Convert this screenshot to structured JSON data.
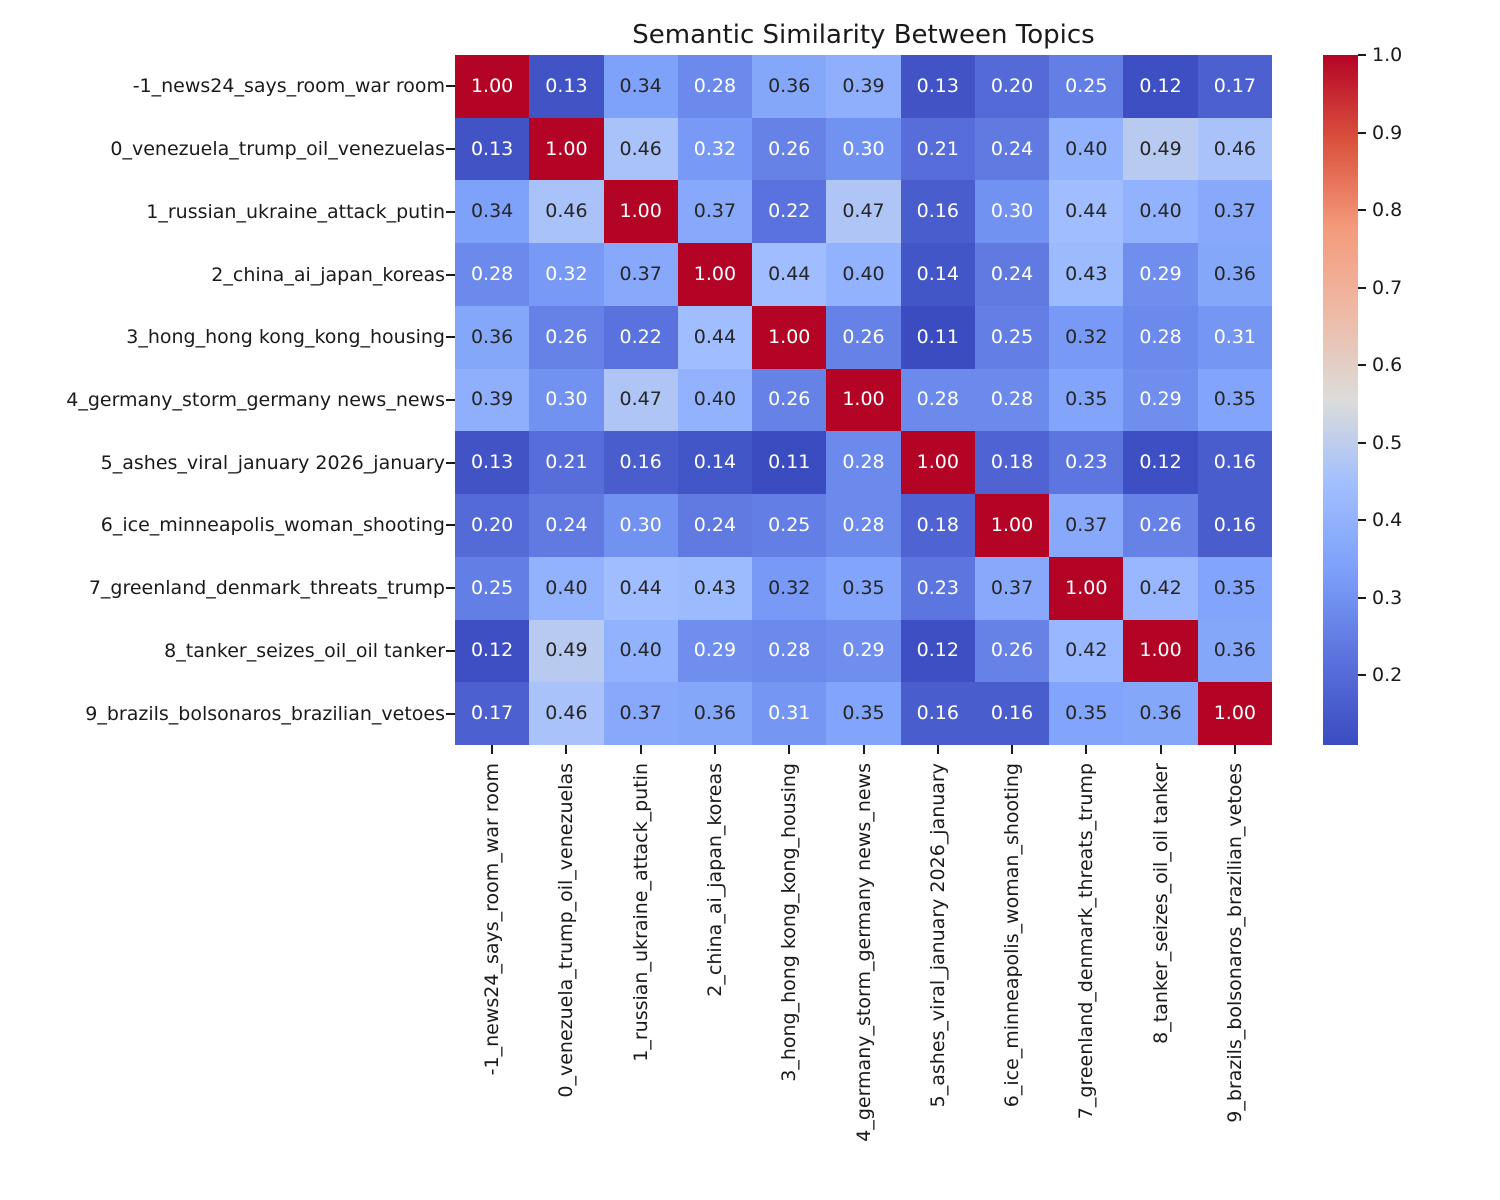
{
  "title": "Semantic Similarity Between Topics",
  "colors": {
    "background": "#ffffff",
    "annot_light": "#ffffff",
    "annot_dark": "#262626",
    "label": "#1a1a1a"
  },
  "chart_data": {
    "type": "heatmap",
    "title": "Semantic Similarity Between Topics",
    "xlabel": "",
    "ylabel": "",
    "grid": false,
    "legend_position": "colorbar-right",
    "categories": [
      "-1_news24_says_room_war room",
      "0_venezuela_trump_oil_venezuelas",
      "1_russian_ukraine_attack_putin",
      "2_china_ai_japan_koreas",
      "3_hong_hong kong_kong_housing",
      "4_germany_storm_germany news_news",
      "5_ashes_viral_january 2026_january",
      "6_ice_minneapolis_woman_shooting",
      "7_greenland_denmark_threats_trump",
      "8_tanker_seizes_oil_oil tanker",
      "9_brazils_bolsonaros_brazilian_vetoes"
    ],
    "matrix": [
      [
        1.0,
        0.13,
        0.34,
        0.28,
        0.36,
        0.39,
        0.13,
        0.2,
        0.25,
        0.12,
        0.17
      ],
      [
        0.13,
        1.0,
        0.46,
        0.32,
        0.26,
        0.3,
        0.21,
        0.24,
        0.4,
        0.49,
        0.46
      ],
      [
        0.34,
        0.46,
        1.0,
        0.37,
        0.22,
        0.47,
        0.16,
        0.3,
        0.44,
        0.4,
        0.37
      ],
      [
        0.28,
        0.32,
        0.37,
        1.0,
        0.44,
        0.4,
        0.14,
        0.24,
        0.43,
        0.29,
        0.36
      ],
      [
        0.36,
        0.26,
        0.22,
        0.44,
        1.0,
        0.26,
        0.11,
        0.25,
        0.32,
        0.28,
        0.31
      ],
      [
        0.39,
        0.3,
        0.47,
        0.4,
        0.26,
        1.0,
        0.28,
        0.28,
        0.35,
        0.29,
        0.35
      ],
      [
        0.13,
        0.21,
        0.16,
        0.14,
        0.11,
        0.28,
        1.0,
        0.18,
        0.23,
        0.12,
        0.16
      ],
      [
        0.2,
        0.24,
        0.3,
        0.24,
        0.25,
        0.28,
        0.18,
        1.0,
        0.37,
        0.26,
        0.16
      ],
      [
        0.25,
        0.4,
        0.44,
        0.43,
        0.32,
        0.35,
        0.23,
        0.37,
        1.0,
        0.42,
        0.35
      ],
      [
        0.12,
        0.49,
        0.4,
        0.29,
        0.28,
        0.29,
        0.12,
        0.26,
        0.42,
        1.0,
        0.36
      ],
      [
        0.17,
        0.46,
        0.37,
        0.36,
        0.31,
        0.35,
        0.16,
        0.16,
        0.35,
        0.36,
        1.0
      ]
    ],
    "white_text": [
      [
        true,
        true,
        false,
        true,
        false,
        false,
        true,
        true,
        true,
        true,
        true
      ],
      [
        true,
        true,
        false,
        true,
        true,
        true,
        true,
        true,
        false,
        false,
        false
      ],
      [
        false,
        false,
        true,
        false,
        true,
        false,
        true,
        true,
        false,
        false,
        false
      ],
      [
        true,
        true,
        false,
        true,
        false,
        false,
        true,
        true,
        false,
        true,
        false
      ],
      [
        false,
        true,
        true,
        false,
        true,
        true,
        true,
        true,
        false,
        true,
        true
      ],
      [
        false,
        true,
        false,
        false,
        true,
        true,
        true,
        true,
        false,
        true,
        false
      ],
      [
        true,
        true,
        true,
        true,
        true,
        true,
        true,
        true,
        true,
        true,
        true
      ],
      [
        true,
        true,
        true,
        true,
        true,
        true,
        true,
        true,
        false,
        true,
        true
      ],
      [
        true,
        false,
        false,
        false,
        false,
        false,
        true,
        false,
        true,
        false,
        false
      ],
      [
        true,
        false,
        false,
        true,
        true,
        true,
        true,
        true,
        false,
        true,
        false
      ],
      [
        true,
        false,
        false,
        false,
        true,
        false,
        true,
        true,
        false,
        false,
        true
      ]
    ],
    "value_decimals": 2,
    "vmin": 0.11,
    "vmax": 1.0,
    "colormap": {
      "name": "coolwarm",
      "anchors": [
        {
          "t": 0.0,
          "color": "#3b4cc0"
        },
        {
          "t": 0.125,
          "color": "#5a72dd"
        },
        {
          "t": 0.25,
          "color": "#7c9ff9"
        },
        {
          "t": 0.375,
          "color": "#a0beff"
        },
        {
          "t": 0.5,
          "color": "#dcdcda"
        },
        {
          "t": 0.625,
          "color": "#eebaa6"
        },
        {
          "t": 0.75,
          "color": "#f49a7b"
        },
        {
          "t": 0.875,
          "color": "#db523e"
        },
        {
          "t": 1.0,
          "color": "#b40426"
        }
      ]
    },
    "colorbar_tick_values": [
      1.0,
      0.9,
      0.8,
      0.7,
      0.6,
      0.5,
      0.4,
      0.3,
      0.2
    ],
    "colorbar_tick_decimals": 1
  }
}
